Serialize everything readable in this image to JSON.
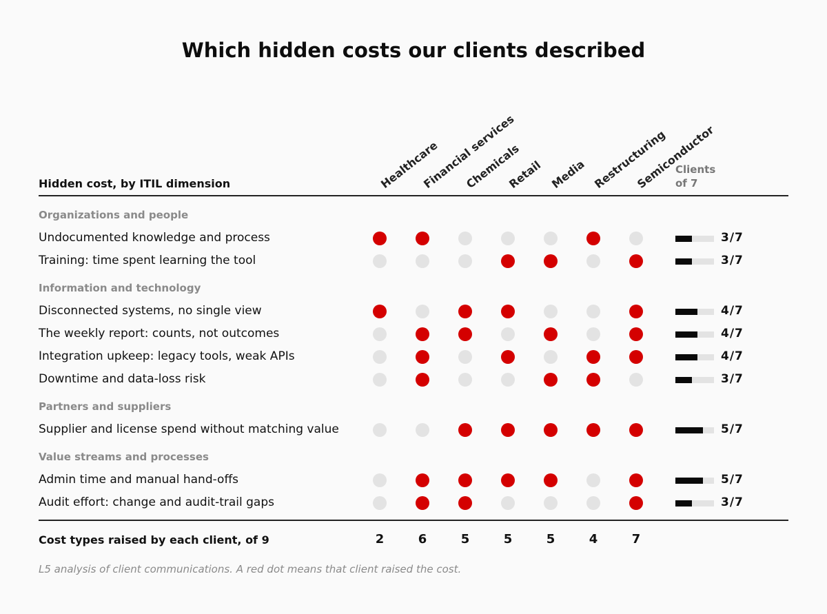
{
  "chart_data": {
    "type": "table",
    "title": "Which hidden costs our clients described",
    "row_header": "Hidden cost, by ITIL dimension",
    "columns": [
      "Healthcare",
      "Financial services",
      "Chemicals",
      "Retail",
      "Media",
      "Restructuring",
      "Semiconductor"
    ],
    "count_header": [
      "Clients",
      "of 7"
    ],
    "groups": [
      {
        "name": "Organizations and people",
        "rows": [
          {
            "label": "Undocumented knowledge and process",
            "values": [
              1,
              1,
              0,
              0,
              0,
              1,
              0
            ],
            "count": 3,
            "count_label": "3/7"
          },
          {
            "label": "Training: time spent learning the tool",
            "values": [
              0,
              0,
              0,
              1,
              1,
              0,
              1
            ],
            "count": 3,
            "count_label": "3/7"
          }
        ]
      },
      {
        "name": "Information and technology",
        "rows": [
          {
            "label": "Disconnected systems, no single view",
            "values": [
              1,
              0,
              1,
              1,
              0,
              0,
              1
            ],
            "count": 4,
            "count_label": "4/7"
          },
          {
            "label": "The weekly report: counts, not outcomes",
            "values": [
              0,
              1,
              1,
              0,
              1,
              0,
              1
            ],
            "count": 4,
            "count_label": "4/7"
          },
          {
            "label": "Integration upkeep: legacy tools, weak APIs",
            "values": [
              0,
              1,
              0,
              1,
              0,
              1,
              1
            ],
            "count": 4,
            "count_label": "4/7"
          },
          {
            "label": "Downtime and data-loss risk",
            "values": [
              0,
              1,
              0,
              0,
              1,
              1,
              0
            ],
            "count": 3,
            "count_label": "3/7"
          }
        ]
      },
      {
        "name": "Partners and suppliers",
        "rows": [
          {
            "label": "Supplier and license spend without matching value",
            "values": [
              0,
              0,
              1,
              1,
              1,
              1,
              1
            ],
            "count": 5,
            "count_label": "5/7"
          }
        ]
      },
      {
        "name": "Value streams and processes",
        "rows": [
          {
            "label": "Admin time and manual hand-offs",
            "values": [
              0,
              1,
              1,
              1,
              1,
              0,
              1
            ],
            "count": 5,
            "count_label": "5/7"
          },
          {
            "label": "Audit effort: change and audit-trail gaps",
            "values": [
              0,
              1,
              1,
              0,
              0,
              0,
              1
            ],
            "count": 3,
            "count_label": "3/7"
          }
        ]
      }
    ],
    "count_max": 7,
    "totals_label": "Cost types raised by each client, of 9",
    "totals": [
      "2",
      "6",
      "5",
      "5",
      "5",
      "4",
      "7"
    ],
    "note": "L5 analysis of client communications. A red dot means that client raised the cost.",
    "colors": {
      "raised": "#d40000",
      "not_raised": "#e3e3e3",
      "bar": "#0a0a0a"
    }
  }
}
